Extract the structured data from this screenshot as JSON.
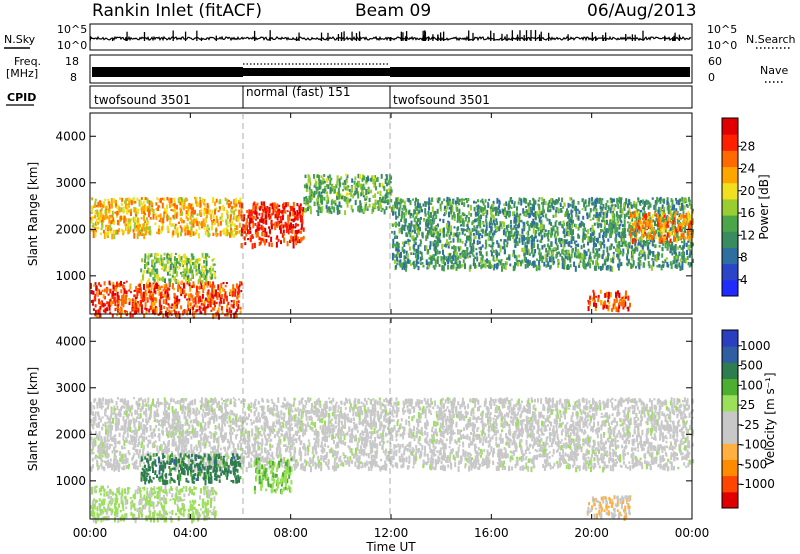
{
  "header": {
    "station": "Rankin Inlet (fitACF)",
    "beam": "Beam 09",
    "date": "06/Aug/2013"
  },
  "nsky_panel": {
    "left_label": "N.Sky",
    "right_label": "N.Search",
    "left_ticks": [
      "10^5",
      "10^0"
    ],
    "right_ticks": [
      "10^5",
      "10^0"
    ]
  },
  "freq_panel": {
    "left_label_line1": "Freq.",
    "left_label_line2": "[MHz]",
    "right_label": "Nave",
    "left_ticks": [
      "18",
      "8"
    ],
    "right_ticks": [
      "60",
      "0"
    ]
  },
  "cpid_panel": {
    "label": "CPID",
    "segments": [
      {
        "name": "twofsound 3501",
        "start_hour": 0,
        "end_hour": 6
      },
      {
        "name": "normal (fast) 151",
        "start_hour": 6,
        "end_hour": 12
      },
      {
        "name": "twofsound 3501",
        "start_hour": 12,
        "end_hour": 24
      }
    ]
  },
  "x_axis": {
    "label": "Time UT",
    "ticks": [
      "00:00",
      "04:00",
      "08:00",
      "12:00",
      "16:00",
      "20:00",
      "00:00"
    ],
    "tick_hours": [
      0,
      4,
      8,
      12,
      16,
      20,
      24
    ]
  },
  "colors": {
    "power_scale": [
      "#1f2bff",
      "#2a45c8",
      "#2e6fa0",
      "#3a8c60",
      "#4aa648",
      "#9acd32",
      "#f0e020",
      "#ffa500",
      "#ff6a00",
      "#ff2000",
      "#e00000"
    ],
    "velocity_scale": [
      "#e00000",
      "#ff4500",
      "#ff8c00",
      "#ffb040",
      "#c8c8c8",
      "#c8c8c8",
      "#9be05a",
      "#4caf30",
      "#2e7d4f",
      "#2f5fa0",
      "#2a3fc0"
    ]
  },
  "chart_data": [
    {
      "type": "heatmap",
      "name": "power",
      "ylabel": "Slant Range [km]",
      "xlabel": "",
      "ylim": [
        180,
        4500
      ],
      "xlim_hours": [
        0,
        24
      ],
      "yticks": [
        1000,
        2000,
        3000,
        4000
      ],
      "ytick_labels": [
        "1000",
        "2000",
        "3000",
        "4000"
      ],
      "colorbar_label": "Power [dB]",
      "colorbar_ticks": [
        "4",
        "8",
        "12",
        "16",
        "20",
        "24",
        "28"
      ],
      "colorbar_range": [
        0,
        30
      ],
      "features": [
        {
          "desc_hours": [
            0,
            6
          ],
          "range_km": [
            1900,
            2700
          ],
          "power_db": 20
        },
        {
          "desc_hours": [
            0,
            6
          ],
          "range_km": [
            180,
            900
          ],
          "power_db": 26
        },
        {
          "desc_hours": [
            2,
            5
          ],
          "range_km": [
            900,
            1500
          ],
          "power_db": 14
        },
        {
          "desc_hours": [
            6,
            8.5
          ],
          "range_km": [
            1700,
            2600
          ],
          "power_db": 28
        },
        {
          "desc_hours": [
            8.5,
            12
          ],
          "range_km": [
            2400,
            3200
          ],
          "power_db": 12
        },
        {
          "desc_hours": [
            12,
            24
          ],
          "range_km": [
            1200,
            2700
          ],
          "power_db": 10
        },
        {
          "desc_hours": [
            19.8,
            21.5
          ],
          "range_km": [
            300,
            700
          ],
          "power_db": 26
        },
        {
          "desc_hours": [
            21.5,
            24
          ],
          "range_km": [
            1800,
            2400
          ],
          "power_db": 22
        }
      ]
    },
    {
      "type": "heatmap",
      "name": "velocity",
      "ylabel": "Slant Range [km]",
      "xlabel": "Time UT",
      "ylim": [
        180,
        4500
      ],
      "xlim_hours": [
        0,
        24
      ],
      "yticks": [
        1000,
        2000,
        3000,
        4000
      ],
      "ytick_labels": [
        "1000",
        "2000",
        "3000",
        "4000"
      ],
      "colorbar_label": "Velocity [m s⁻¹]",
      "colorbar_ticks": [
        "1000",
        "500",
        "100",
        "25",
        "-25",
        "-100",
        "-500",
        "-1000"
      ],
      "colorbar_range": [
        -1000,
        1000
      ],
      "features": [
        {
          "desc_hours": [
            0,
            24
          ],
          "range_km": [
            1300,
            2800
          ],
          "velocity_ms": 0
        },
        {
          "desc_hours": [
            2,
            6
          ],
          "range_km": [
            1000,
            1600
          ],
          "velocity_ms": 600
        },
        {
          "desc_hours": [
            6.5,
            8
          ],
          "range_km": [
            800,
            1500
          ],
          "velocity_ms": 300
        },
        {
          "desc_hours": [
            0,
            5
          ],
          "range_km": [
            200,
            900
          ],
          "velocity_ms": 150
        },
        {
          "desc_hours": [
            19.8,
            21.5
          ],
          "range_km": [
            250,
            700
          ],
          "velocity_ms": -300
        }
      ]
    }
  ]
}
